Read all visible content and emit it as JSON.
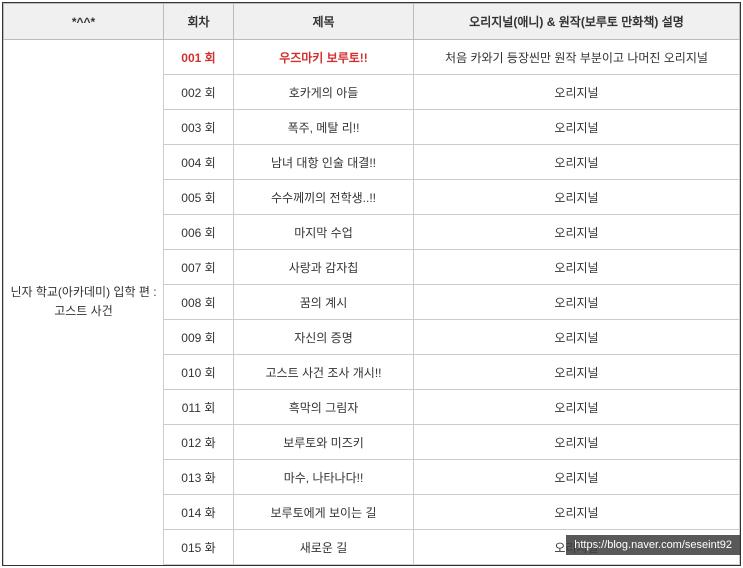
{
  "headers": {
    "arc": "*^^*",
    "episode": "회차",
    "title": "제목",
    "description": "오리지널(애니) & 원작(보루토 만화책) 설명"
  },
  "arc_label": "닌자 학교(아카데미) 입학 편 : 고스트 사건",
  "rows": [
    {
      "ep": "001 회",
      "title": "우즈마키 보루토!!",
      "desc": "처음 카와기 등장씬만 원작 부분이고 나머진 오리지널",
      "highlight": true
    },
    {
      "ep": "002 회",
      "title": "호카게의 아들",
      "desc": "오리지널",
      "highlight": false
    },
    {
      "ep": "003 회",
      "title": "폭주, 메탈 리!!",
      "desc": "오리지널",
      "highlight": false
    },
    {
      "ep": "004 회",
      "title": "남녀 대항 인술 대결!!",
      "desc": "오리지널",
      "highlight": false
    },
    {
      "ep": "005 회",
      "title": "수수께끼의 전학생..!!",
      "desc": "오리지널",
      "highlight": false
    },
    {
      "ep": "006 회",
      "title": "마지막 수업",
      "desc": "오리지널",
      "highlight": false
    },
    {
      "ep": "007 회",
      "title": "사랑과 감자칩",
      "desc": "오리지널",
      "highlight": false
    },
    {
      "ep": "008 회",
      "title": "꿈의 계시",
      "desc": "오리지널",
      "highlight": false
    },
    {
      "ep": "009 회",
      "title": "자신의 증명",
      "desc": "오리지널",
      "highlight": false
    },
    {
      "ep": "010 회",
      "title": "고스트 사건 조사 개시!!",
      "desc": "오리지널",
      "highlight": false
    },
    {
      "ep": "011 회",
      "title": "흑막의 그림자",
      "desc": "오리지널",
      "highlight": false
    },
    {
      "ep": "012 화",
      "title": "보루토와 미즈키",
      "desc": "오리지널",
      "highlight": false
    },
    {
      "ep": "013 화",
      "title": "마수, 나타나다!!",
      "desc": "오리지널",
      "highlight": false
    },
    {
      "ep": "014 화",
      "title": "보루토에게 보이는 길",
      "desc": "오리지널",
      "highlight": false
    },
    {
      "ep": "015 화",
      "title": "새로운 길",
      "desc": "오리지널",
      "highlight": false
    }
  ],
  "watermark": "https://blog.naver.com/seseint92"
}
